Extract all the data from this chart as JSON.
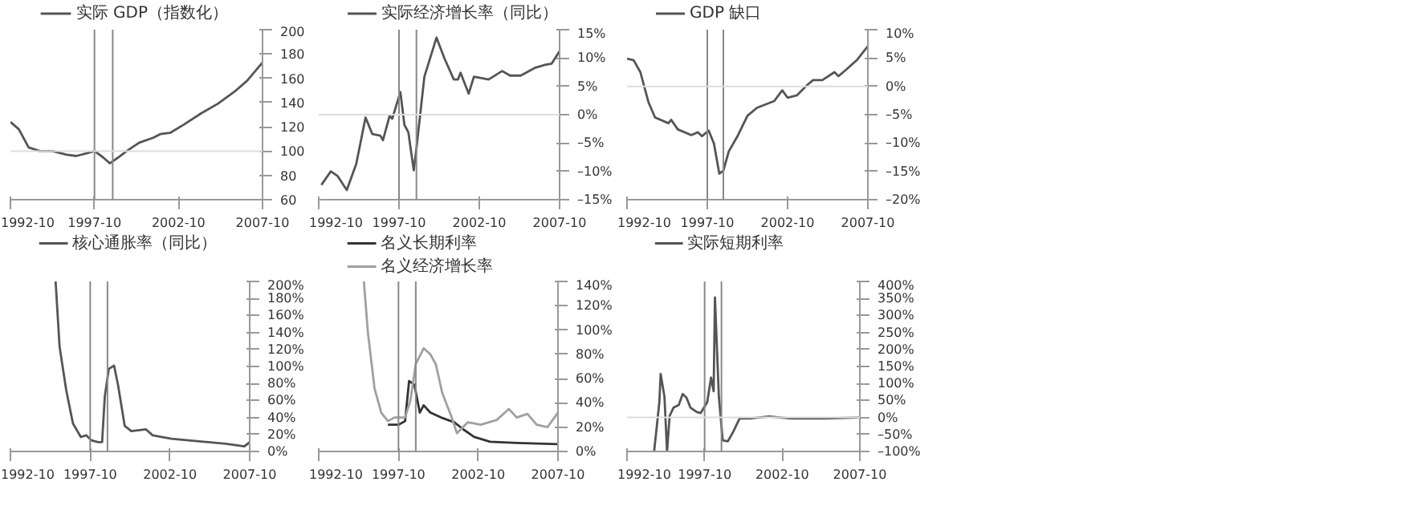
{
  "chart_data": [
    {
      "type": "line",
      "legend": "top",
      "xlim": [
        "1992-10",
        "2007-10"
      ],
      "xticks": [
        "1992-10",
        "1997-10",
        "2002-10",
        "2007-10"
      ],
      "ylim": [
        60,
        200
      ],
      "yticks": [
        60,
        80,
        100,
        120,
        140,
        160,
        180,
        200
      ],
      "ref_lines": [
        {
          "axis": "x",
          "value": "1997-10",
          "color": "#888888"
        },
        {
          "axis": "x",
          "value": "1998-11",
          "color": "#888888"
        },
        {
          "axis": "y",
          "value": 100,
          "color": "#dddddd"
        }
      ],
      "series": [
        {
          "name": "实际 GDP（指数化）",
          "color": "#555555",
          "x": [
            "1992-10",
            "1993-04",
            "1993-11",
            "1994-07",
            "1995-04",
            "1996-02",
            "1996-09",
            "1997-04",
            "1997-10",
            "1998-04",
            "1998-09",
            "1999-02",
            "1999-09",
            "2000-06",
            "2001-04",
            "2001-09",
            "2002-04",
            "2003-02",
            "2004-02",
            "2005-02",
            "2006-02",
            "2006-11",
            "2007-10"
          ],
          "values": [
            124,
            118,
            103,
            100,
            100,
            97,
            96,
            98,
            100,
            95,
            90,
            94,
            100,
            107,
            111,
            114,
            115,
            122,
            131,
            139,
            149,
            158,
            173
          ]
        }
      ]
    },
    {
      "type": "line",
      "legend": "top",
      "xlim": [
        "1992-10",
        "2007-10"
      ],
      "xticks": [
        "1992-10",
        "1997-10",
        "2002-10",
        "2007-10"
      ],
      "ylim": [
        -15,
        15
      ],
      "yticks": [
        {
          "value": -15,
          "label": "–15%"
        },
        {
          "value": -10,
          "label": "–10%"
        },
        {
          "value": -5,
          "label": "–5%"
        },
        {
          "value": 0,
          "label": "0%"
        },
        {
          "value": 5,
          "label": "5%"
        },
        {
          "value": 10,
          "label": "10%"
        },
        {
          "value": 15,
          "label": "15%"
        }
      ],
      "ref_lines": [
        {
          "axis": "x",
          "value": "1997-10",
          "color": "#888888"
        },
        {
          "axis": "x",
          "value": "1998-11",
          "color": "#888888"
        },
        {
          "axis": "y",
          "value": 0,
          "color": "#dddddd"
        }
      ],
      "series": [
        {
          "name": "实际经济增长率（同比）",
          "color": "#555555",
          "x": [
            "1992-12",
            "1993-07",
            "1993-12",
            "1994-07",
            "1995-02",
            "1995-09",
            "1996-02",
            "1996-08",
            "1996-10",
            "1997-03",
            "1997-05",
            "1997-11",
            "1998-02",
            "1998-05",
            "1998-09",
            "1998-11",
            "1999-05",
            "2000-02",
            "2000-08",
            "2001-03",
            "2001-06",
            "2001-08",
            "2002-02",
            "2002-06",
            "2003-05",
            "2004-03",
            "2004-09",
            "2005-05",
            "2006-04",
            "2006-11",
            "2007-04",
            "2007-10"
          ],
          "values": [
            -12.4,
            -10,
            -10.8,
            -13.3,
            -8.7,
            -0.5,
            -3.4,
            -3.7,
            -4.5,
            -0.2,
            -0.7,
            4,
            -1.8,
            -3.1,
            -9.8,
            -6,
            6.7,
            13.6,
            9.9,
            6.2,
            6.2,
            7.4,
            3.7,
            6.7,
            6.2,
            7.7,
            6.9,
            6.9,
            8.3,
            8.8,
            9,
            11.2
          ]
        }
      ]
    },
    {
      "type": "line",
      "legend": "top",
      "xlim": [
        "1992-10",
        "2007-10"
      ],
      "xticks": [
        "1992-10",
        "1997-10",
        "2002-10",
        "2007-10"
      ],
      "ylim": [
        -20,
        10
      ],
      "yticks": [
        {
          "value": -20,
          "label": "–20%"
        },
        {
          "value": -15,
          "label": "–15%"
        },
        {
          "value": -10,
          "label": "–10%"
        },
        {
          "value": -5,
          "label": "–5%"
        },
        {
          "value": 0,
          "label": "0%"
        },
        {
          "value": 5,
          "label": "5%"
        },
        {
          "value": 10,
          "label": "10%"
        }
      ],
      "ref_lines": [
        {
          "axis": "x",
          "value": "1997-10",
          "color": "#888888"
        },
        {
          "axis": "x",
          "value": "1998-10",
          "color": "#888888"
        },
        {
          "axis": "y",
          "value": 0,
          "color": "#dddddd"
        }
      ],
      "series": [
        {
          "name": "GDP 缺口",
          "color": "#555555",
          "x": [
            "1992-10",
            "1993-03",
            "1993-08",
            "1994-02",
            "1994-07",
            "1995-05",
            "1995-07",
            "1995-12",
            "1996-10",
            "1997-03",
            "1997-06",
            "1997-11",
            "1998-03",
            "1998-07",
            "1998-10",
            "1999-02",
            "1999-09",
            "2000-04",
            "2000-11",
            "2001-12",
            "2002-06",
            "2002-10",
            "2003-05",
            "2003-12",
            "2004-05",
            "2004-12",
            "2005-09",
            "2005-12",
            "2006-06",
            "2007-02",
            "2007-10"
          ],
          "values": [
            4.9,
            4.6,
            2.5,
            -2.8,
            -5.5,
            -6.5,
            -5.9,
            -7.6,
            -8.6,
            -8.1,
            -8.8,
            -7.8,
            -10.1,
            -15.4,
            -14.9,
            -11.5,
            -8.6,
            -5.2,
            -3.8,
            -2.6,
            -0.7,
            -2,
            -1.6,
            0.1,
            1.1,
            1.1,
            2.5,
            1.8,
            3,
            4.7,
            7.1
          ]
        }
      ]
    },
    {
      "type": "line",
      "legend": "top",
      "xlim": [
        "1992-10",
        "2007-10"
      ],
      "xticks": [
        "1992-10",
        "1997-10",
        "2002-10",
        "2007-10"
      ],
      "ylim": [
        0,
        200
      ],
      "yticks": [
        {
          "value": 0,
          "label": "0%"
        },
        {
          "value": 20,
          "label": "20%"
        },
        {
          "value": 40,
          "label": "40%"
        },
        {
          "value": 60,
          "label": "60%"
        },
        {
          "value": 80,
          "label": "80%"
        },
        {
          "value": 100,
          "label": "100%"
        },
        {
          "value": 120,
          "label": "120%"
        },
        {
          "value": 140,
          "label": "140%"
        },
        {
          "value": 160,
          "label": "160%"
        },
        {
          "value": 180,
          "label": "180%"
        },
        {
          "value": 200,
          "label": "200%"
        }
      ],
      "ref_lines": [
        {
          "axis": "x",
          "value": "1997-10",
          "color": "#888888"
        },
        {
          "axis": "x",
          "value": "1998-11",
          "color": "#888888"
        }
      ],
      "series": [
        {
          "name": "核心通胀率（同比）",
          "color": "#555555",
          "x": [
            "1995-08",
            "1995-11",
            "1996-04",
            "1996-09",
            "1997-03",
            "1997-07",
            "1997-11",
            "1998-04",
            "1998-07",
            "1998-09",
            "1998-12",
            "1999-04",
            "1999-07",
            "1999-12",
            "2000-05",
            "2001-04",
            "2001-09",
            "2002-11",
            "2004-08",
            "2006-04",
            "2007-06",
            "2007-10"
          ],
          "values": [
            200,
            123,
            72,
            33,
            17,
            19,
            13,
            11,
            11,
            65,
            97,
            101,
            78,
            30,
            24,
            26,
            19,
            15,
            12,
            9,
            6,
            11
          ]
        }
      ]
    },
    {
      "type": "line",
      "legend": "top",
      "xlim": [
        "1992-10",
        "2007-10"
      ],
      "xticks": [
        "1992-10",
        "1997-10",
        "2002-10",
        "2007-10"
      ],
      "ylim": [
        0,
        140
      ],
      "yticks": [
        {
          "value": 0,
          "label": "0%"
        },
        {
          "value": 20,
          "label": "20%"
        },
        {
          "value": 40,
          "label": "40%"
        },
        {
          "value": 60,
          "label": "60%"
        },
        {
          "value": 80,
          "label": "80%"
        },
        {
          "value": 100,
          "label": "100%"
        },
        {
          "value": 120,
          "label": "120%"
        },
        {
          "value": 140,
          "label": "140%"
        }
      ],
      "ref_lines": [
        {
          "axis": "x",
          "value": "1997-10",
          "color": "#888888"
        },
        {
          "axis": "x",
          "value": "1998-11",
          "color": "#888888"
        }
      ],
      "series": [
        {
          "name": "名义长期利率",
          "color": "#333333",
          "x": [
            "1997-02",
            "1997-10",
            "1998-03",
            "1998-06",
            "1998-10",
            "1999-02",
            "1999-05",
            "1999-10",
            "2000-06",
            "2001-04",
            "2001-11",
            "2002-07",
            "2003-07",
            "2005-03",
            "2007-10"
          ],
          "values": [
            22,
            22,
            25,
            58,
            55,
            32,
            38,
            32,
            28,
            24,
            18,
            12,
            8,
            7,
            6
          ]
        },
        {
          "name": "名义经济增长率",
          "color": "#a0a0a0",
          "x": [
            "1995-08",
            "1995-11",
            "1996-04",
            "1996-09",
            "1997-02",
            "1997-07",
            "1997-10",
            "1998-03",
            "1998-07",
            "1998-11",
            "1999-05",
            "1999-10",
            "2000-02",
            "2000-07",
            "2001-02",
            "2001-06",
            "2002-02",
            "2002-12",
            "2003-12",
            "2004-09",
            "2005-03",
            "2005-11",
            "2006-06",
            "2007-02",
            "2007-10"
          ],
          "values": [
            140,
            98,
            52,
            32,
            25,
            28,
            28,
            28,
            42,
            72,
            85,
            80,
            72,
            48,
            28,
            15,
            24,
            22,
            26,
            35,
            28,
            31,
            22,
            20,
            32
          ]
        }
      ]
    },
    {
      "type": "line",
      "legend": "top",
      "xlim": [
        "1992-10",
        "2007-10"
      ],
      "xticks": [
        "1992-10",
        "1997-10",
        "2002-10",
        "2007-10"
      ],
      "ylim": [
        -100,
        400
      ],
      "yticks": [
        {
          "value": -100,
          "label": "–100%"
        },
        {
          "value": -50,
          "label": "–50%"
        },
        {
          "value": 0,
          "label": "0%"
        },
        {
          "value": 50,
          "label": "50%"
        },
        {
          "value": 100,
          "label": "100%"
        },
        {
          "value": 150,
          "label": "150%"
        },
        {
          "value": 200,
          "label": "200%"
        },
        {
          "value": 250,
          "label": "250%"
        },
        {
          "value": 300,
          "label": "300%"
        },
        {
          "value": 350,
          "label": "350%"
        },
        {
          "value": 400,
          "label": "400%"
        }
      ],
      "ref_lines": [
        {
          "axis": "x",
          "value": "1997-10",
          "color": "#888888"
        },
        {
          "axis": "x",
          "value": "1998-11",
          "color": "#888888"
        },
        {
          "axis": "y",
          "value": 0,
          "color": "#dddddd"
        }
      ],
      "series": [
        {
          "name": "实际短期利率",
          "color": "#555555",
          "x": [
            "1994-07",
            "1994-11",
            "1994-12",
            "1995-03",
            "1995-05",
            "1995-07",
            "1995-10",
            "1996-02",
            "1996-05",
            "1996-08",
            "1996-11",
            "1997-04",
            "1997-07",
            "1997-12",
            "1998-03",
            "1998-05",
            "1998-06",
            "1998-09",
            "1998-12",
            "1999-04",
            "1999-08",
            "2000-01",
            "2000-09",
            "2001-04",
            "2001-12",
            "2003-05",
            "2005-06",
            "2007-10"
          ],
          "values": [
            -100,
            45,
            128,
            61,
            -100,
            5,
            29,
            37,
            69,
            58,
            29,
            16,
            13,
            45,
            117,
            77,
            353,
            61,
            -67,
            -70,
            -43,
            -3,
            -3,
            0,
            3,
            -3,
            -3,
            0
          ]
        }
      ]
    }
  ]
}
